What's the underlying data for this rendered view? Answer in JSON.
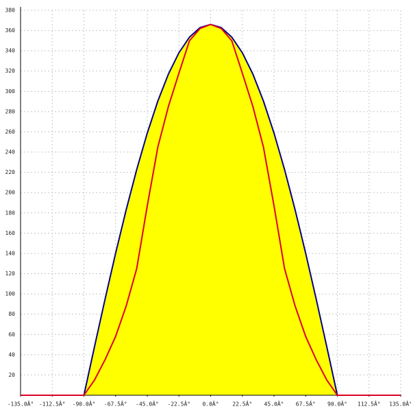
{
  "chart_data": {
    "type": "line",
    "x": [
      -135,
      -90,
      -82.5,
      -75,
      -67.5,
      -60,
      -52.5,
      -45,
      -37.5,
      -30,
      -22.5,
      -15,
      -7.5,
      0,
      7.5,
      15,
      22.5,
      30,
      37.5,
      45,
      52.5,
      60,
      67.5,
      75,
      82.5,
      90,
      135
    ],
    "series": [
      {
        "color": "#00008b",
        "fill": "#ffff00",
        "values": [
          0,
          0,
          47.8,
          94.7,
          140.1,
          183,
          222.8,
          258.8,
          290.4,
          317,
          338.1,
          353.5,
          362.9,
          366,
          362.9,
          353.5,
          338.1,
          317,
          290.4,
          258.8,
          222.8,
          183,
          140.1,
          94.7,
          47.8,
          0,
          0
        ]
      },
      {
        "color": "#dd0022",
        "values": [
          0,
          0,
          15,
          35,
          58,
          88,
          125,
          187,
          245,
          285,
          318,
          350,
          362,
          366,
          362,
          350,
          318,
          285,
          245,
          187,
          125,
          88,
          58,
          35,
          15,
          0,
          0
        ]
      }
    ],
    "xlim": [
      -135,
      135
    ],
    "xticks": [
      {
        "value": -135,
        "label": "-135.0Â°"
      },
      {
        "value": -112.5,
        "label": "-112.5Â°"
      },
      {
        "value": -90,
        "label": "-90.0Â°"
      },
      {
        "value": -67.5,
        "label": "-67.5Â°"
      },
      {
        "value": -45,
        "label": "-45.0Â°"
      },
      {
        "value": -22.5,
        "label": "-22.5Â°"
      },
      {
        "value": 0,
        "label": "0.0Â°"
      },
      {
        "value": 22.5,
        "label": "22.5Â°"
      },
      {
        "value": 45,
        "label": "45.0Â°"
      },
      {
        "value": 67.5,
        "label": "67.5Â°"
      },
      {
        "value": 90,
        "label": "90.0Â°"
      },
      {
        "value": 112.5,
        "label": "112.5Â°"
      },
      {
        "value": 135,
        "label": "135.0Â°"
      }
    ],
    "ylim": [
      0,
      380
    ],
    "yticks": [
      20,
      40,
      60,
      80,
      100,
      120,
      140,
      160,
      180,
      200,
      220,
      240,
      260,
      280,
      300,
      320,
      340,
      360,
      380
    ],
    "grid": true
  }
}
